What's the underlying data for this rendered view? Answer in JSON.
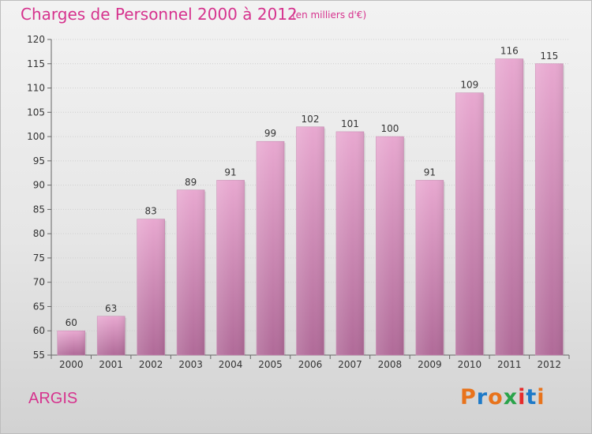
{
  "header": {
    "title": "Charges de Personnel 2000 à 2012",
    "subtitle": "(en milliers d'€)"
  },
  "footer": {
    "place": "ARGIS",
    "logo_text": "Proxiti"
  },
  "colors": {
    "title": "#d6338e",
    "bar_top": "#e8a8d0",
    "bar_bottom": "#b06a98",
    "logo_letters": [
      "#e8731c",
      "#1e7ac8",
      "#e8731c",
      "#2aa34a",
      "#e62b2b",
      "#1e7ac8",
      "#e8731c"
    ]
  },
  "chart_data": {
    "type": "bar",
    "title": "Charges de Personnel 2000 à 2012",
    "subtitle": "(en milliers d'€)",
    "categories": [
      "2000",
      "2001",
      "2002",
      "2003",
      "2004",
      "2005",
      "2006",
      "2007",
      "2008",
      "2009",
      "2010",
      "2011",
      "2012"
    ],
    "values": [
      60,
      63,
      83,
      89,
      91,
      99,
      102,
      101,
      100,
      91,
      109,
      116,
      115
    ],
    "ylim": [
      55,
      120
    ],
    "yticks": [
      55,
      60,
      65,
      70,
      75,
      80,
      85,
      90,
      95,
      100,
      105,
      110,
      115,
      120
    ],
    "grid": true,
    "xlabel": "",
    "ylabel": ""
  }
}
